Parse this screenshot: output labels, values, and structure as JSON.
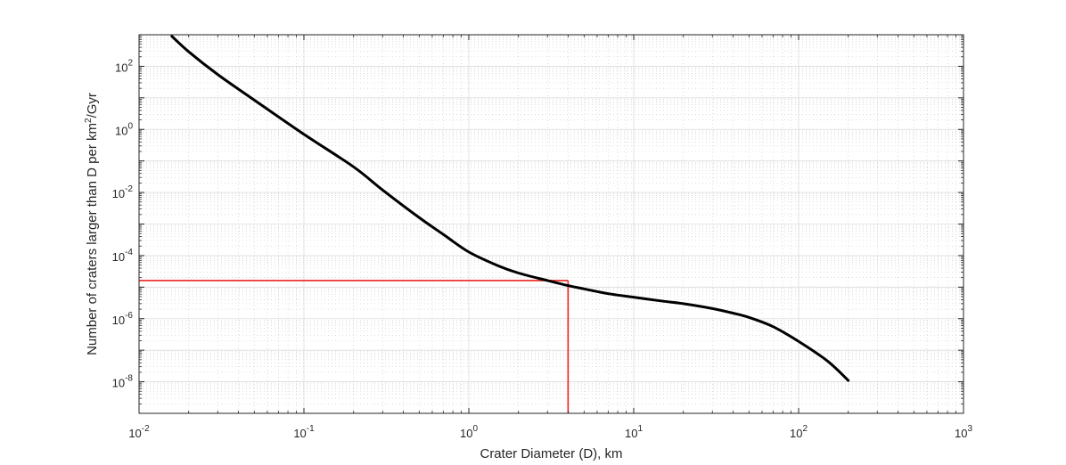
{
  "chart_data": {
    "type": "line",
    "title": "",
    "xlabel": "Crater Diameter (D), km",
    "ylabel_prefix": "Number of craters larger than D per km",
    "ylabel_sup": "2",
    "ylabel_suffix": "/Gyr",
    "xscale": "log",
    "yscale": "log",
    "xlim": [
      0.01,
      1000
    ],
    "ylim": [
      1e-09,
      1000
    ],
    "grid": "on (major and minor)",
    "legend": "none",
    "xticks": [
      {
        "value": 0.01,
        "base": "10",
        "exp": "-2"
      },
      {
        "value": 0.1,
        "base": "10",
        "exp": "-1"
      },
      {
        "value": 1,
        "base": "10",
        "exp": "0"
      },
      {
        "value": 10,
        "base": "10",
        "exp": "1"
      },
      {
        "value": 100,
        "base": "10",
        "exp": "2"
      },
      {
        "value": 1000,
        "base": "10",
        "exp": "3"
      }
    ],
    "yticks": [
      {
        "value": 1e-08,
        "base": "10",
        "exp": "-8"
      },
      {
        "value": 1e-06,
        "base": "10",
        "exp": "-6"
      },
      {
        "value": 0.0001,
        "base": "10",
        "exp": "-4"
      },
      {
        "value": 0.01,
        "base": "10",
        "exp": "-2"
      },
      {
        "value": 1,
        "base": "10",
        "exp": "0"
      },
      {
        "value": 100,
        "base": "10",
        "exp": "2"
      }
    ],
    "series": [
      {
        "color": "#000000",
        "x": [
          0.0158,
          0.02,
          0.03,
          0.05,
          0.1,
          0.2,
          0.3,
          0.5,
          0.7,
          1,
          1.5,
          2,
          3,
          4,
          5,
          7,
          10,
          15,
          20,
          30,
          40,
          50,
          70,
          100,
          150,
          200
        ],
        "y": [
          900,
          290,
          55,
          8.5,
          0.7,
          0.065,
          0.012,
          0.0016,
          0.00047,
          0.00013,
          4.8e-05,
          2.8e-05,
          1.62e-05,
          1.12e-05,
          8.8e-06,
          6.2e-06,
          4.8e-06,
          3.6e-06,
          3e-06,
          2.1e-06,
          1.5e-06,
          1.1e-06,
          5.6e-07,
          1.9e-07,
          4.5e-08,
          1.1e-08
        ]
      }
    ],
    "reference_lines": {
      "color": "#e8231f",
      "x": 4,
      "y": 1.62e-05
    }
  }
}
